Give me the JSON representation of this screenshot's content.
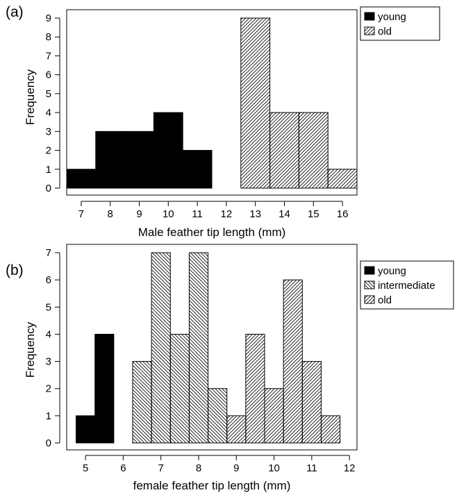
{
  "chart_data": [
    {
      "panel_label": "(a)",
      "type": "bar",
      "xlabel": "Male feather tip length (mm)",
      "ylabel": "Frequency",
      "xlim": [
        6.5,
        16.5
      ],
      "ylim": [
        0,
        9
      ],
      "xticks": [
        7,
        8,
        9,
        10,
        11,
        12,
        13,
        14,
        15,
        16
      ],
      "yticks": [
        0,
        1,
        2,
        3,
        4,
        5,
        6,
        7,
        8,
        9
      ],
      "bin_width": 1,
      "series": [
        {
          "name": "young",
          "pattern": "solid",
          "x": [
            7,
            8,
            9,
            10,
            11
          ],
          "values": [
            1,
            3,
            3,
            4,
            2
          ]
        },
        {
          "name": "old",
          "pattern": "hatch-forward",
          "x": [
            13,
            14,
            15,
            16
          ],
          "values": [
            9,
            4,
            4,
            1
          ]
        }
      ],
      "legend": {
        "placement": "outside-top-right"
      },
      "grid": false
    },
    {
      "panel_label": "(b)",
      "type": "bar",
      "xlabel": "female feather tip length (mm)",
      "ylabel": "Frequency",
      "xlim": [
        4.5,
        12.2
      ],
      "ylim": [
        0,
        7
      ],
      "xticks": [
        5,
        6,
        7,
        8,
        9,
        10,
        11,
        12
      ],
      "yticks": [
        0,
        1,
        2,
        3,
        4,
        5,
        6,
        7
      ],
      "bin_width": 0.5,
      "series": [
        {
          "name": "young",
          "pattern": "solid",
          "x": [
            5,
            5.5
          ],
          "values": [
            1,
            4
          ]
        },
        {
          "name": "intermediate",
          "pattern": "hatch-back",
          "x": [
            6.5,
            7,
            7.5,
            8,
            8.5
          ],
          "values": [
            3,
            7,
            4,
            7,
            2
          ]
        },
        {
          "name": "old",
          "pattern": "hatch-forward",
          "x": [
            9,
            9.5,
            10,
            10.5,
            11,
            11.5
          ],
          "values": [
            1,
            4,
            2,
            6,
            3,
            1
          ]
        }
      ],
      "legend": {
        "placement": "outside-top-right"
      },
      "grid": false
    }
  ]
}
